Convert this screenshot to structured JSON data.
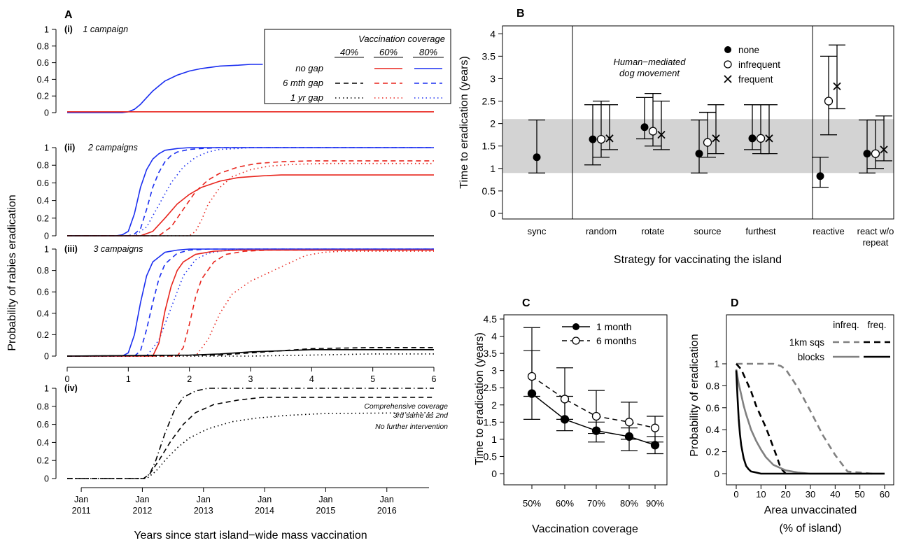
{
  "colors": {
    "black": "#000000",
    "red": "#e8241c",
    "blue": "#1a2ef0",
    "gray": "#808080",
    "band": "#d3d3d3"
  },
  "chart_data": [
    {
      "panel": "A",
      "type": "line",
      "ylabel": "Probability of rabies eradication",
      "xlabel_numeric": [
        "0",
        "1",
        "2",
        "3",
        "4",
        "5",
        "6"
      ],
      "ylim": [
        0,
        1
      ],
      "yticks": [
        "0",
        "0.2",
        "0.4",
        "0.6",
        "0.8",
        "1"
      ],
      "legend": {
        "title": "Vaccination coverage",
        "coverages": [
          "40%",
          "60%",
          "80%"
        ],
        "rows": [
          "no gap",
          "6 mth gap",
          "1 yr gap"
        ]
      },
      "subpanels": [
        {
          "label": "(i)",
          "title": "1 campaign",
          "series": [
            {
              "name": "80% no gap",
              "x": [
                0,
                0.9,
                1.0,
                1.1,
                1.2,
                1.3,
                1.4,
                1.5,
                1.6,
                1.8,
                2.0,
                2.2,
                2.5,
                2.8,
                3.0,
                3.2
              ],
              "y": [
                0,
                0,
                0.01,
                0.04,
                0.1,
                0.18,
                0.26,
                0.32,
                0.38,
                0.45,
                0.5,
                0.53,
                0.56,
                0.57,
                0.58,
                0.58
              ]
            },
            {
              "name": "60% no gap",
              "x": [
                0,
                6
              ],
              "y": [
                0.01,
                0.01
              ]
            }
          ]
        },
        {
          "label": "(ii)",
          "title": "2 campaigns",
          "series": [
            {
              "name": "80% no gap",
              "x": [
                0,
                0.8,
                0.9,
                1.0,
                1.1,
                1.2,
                1.3,
                1.4,
                1.5,
                1.6,
                1.8,
                2.0,
                2.5,
                6
              ],
              "y": [
                0,
                0,
                0.01,
                0.05,
                0.25,
                0.55,
                0.75,
                0.87,
                0.93,
                0.97,
                0.99,
                1,
                1,
                1
              ]
            },
            {
              "name": "80% 6 mth gap",
              "x": [
                0,
                1.0,
                1.1,
                1.2,
                1.3,
                1.4,
                1.5,
                1.6,
                1.7,
                1.8,
                2.0,
                2.2,
                2.5,
                6
              ],
              "y": [
                0,
                0,
                0.02,
                0.08,
                0.3,
                0.55,
                0.72,
                0.84,
                0.91,
                0.95,
                0.98,
                0.99,
                1,
                1
              ]
            },
            {
              "name": "80% 1 yr gap",
              "x": [
                0,
                1.1,
                1.3,
                1.5,
                1.7,
                1.9,
                2.1,
                2.3,
                2.5,
                2.8,
                3.0,
                6
              ],
              "y": [
                0,
                0,
                0.1,
                0.35,
                0.6,
                0.78,
                0.89,
                0.95,
                0.98,
                0.99,
                1,
                1
              ]
            },
            {
              "name": "60% no gap",
              "x": [
                0,
                1.2,
                1.4,
                1.6,
                1.8,
                2.0,
                2.2,
                2.5,
                2.8,
                3.2,
                3.5,
                6
              ],
              "y": [
                0,
                0,
                0.05,
                0.2,
                0.36,
                0.47,
                0.55,
                0.62,
                0.66,
                0.68,
                0.69,
                0.69
              ]
            },
            {
              "name": "60% 6 mth gap",
              "x": [
                0,
                1.5,
                1.7,
                1.9,
                2.1,
                2.3,
                2.5,
                2.8,
                3.1,
                3.5,
                4.0,
                6
              ],
              "y": [
                0,
                0,
                0.1,
                0.3,
                0.5,
                0.63,
                0.71,
                0.78,
                0.82,
                0.84,
                0.85,
                0.85
              ]
            },
            {
              "name": "60% 1 yr gap",
              "x": [
                0,
                2.0,
                2.1,
                2.2,
                2.3,
                2.5,
                2.7,
                3.0,
                3.3,
                3.7,
                4.2,
                6
              ],
              "y": [
                0,
                0,
                0.05,
                0.18,
                0.35,
                0.55,
                0.67,
                0.75,
                0.79,
                0.81,
                0.82,
                0.82
              ]
            },
            {
              "name": "40%",
              "x": [
                0,
                6
              ],
              "y": [
                0,
                0
              ]
            }
          ]
        },
        {
          "label": "(iii)",
          "title": "3 campaigns",
          "series": [
            {
              "name": "80% no gap",
              "x": [
                0,
                0.9,
                1.0,
                1.1,
                1.2,
                1.3,
                1.4,
                1.6,
                1.8,
                2.0,
                6
              ],
              "y": [
                0,
                0,
                0.03,
                0.2,
                0.5,
                0.75,
                0.88,
                0.97,
                0.99,
                1,
                1
              ]
            },
            {
              "name": "80% 6 mth gap",
              "x": [
                0,
                1.1,
                1.2,
                1.3,
                1.4,
                1.5,
                1.6,
                1.8,
                2.0,
                2.3,
                6
              ],
              "y": [
                0,
                0,
                0.05,
                0.25,
                0.5,
                0.72,
                0.86,
                0.96,
                0.99,
                1,
                1
              ]
            },
            {
              "name": "80% 1 yr gap",
              "x": [
                0,
                1.3,
                1.5,
                1.7,
                1.9,
                2.1,
                2.3,
                2.6,
                3.0,
                6
              ],
              "y": [
                0,
                0,
                0.15,
                0.45,
                0.75,
                0.9,
                0.96,
                0.99,
                1,
                1
              ]
            },
            {
              "name": "60% no gap",
              "x": [
                0,
                1.4,
                1.5,
                1.6,
                1.7,
                1.8,
                1.9,
                2.1,
                2.4,
                2.8,
                6
              ],
              "y": [
                0,
                0,
                0.12,
                0.42,
                0.65,
                0.8,
                0.88,
                0.95,
                0.98,
                0.99,
                0.99
              ]
            },
            {
              "name": "60% 6 mth gap",
              "x": [
                0,
                1.8,
                1.9,
                2.0,
                2.1,
                2.2,
                2.4,
                2.6,
                2.9,
                3.3,
                6
              ],
              "y": [
                0,
                0,
                0.08,
                0.3,
                0.55,
                0.72,
                0.88,
                0.95,
                0.98,
                0.99,
                0.99
              ]
            },
            {
              "name": "60% 1 yr gap",
              "x": [
                0,
                2.1,
                2.3,
                2.5,
                2.7,
                3.0,
                3.3,
                3.6,
                3.9,
                4.2,
                4.5,
                6
              ],
              "y": [
                0,
                0,
                0.15,
                0.4,
                0.58,
                0.7,
                0.78,
                0.86,
                0.94,
                0.97,
                0.98,
                0.98
              ]
            },
            {
              "name": "40% no gap",
              "x": [
                0,
                2.0,
                2.5,
                3.0,
                3.5,
                4.0,
                5.0,
                6
              ],
              "y": [
                0,
                0.01,
                0.02,
                0.04,
                0.05,
                0.06,
                0.06,
                0.06
              ]
            },
            {
              "name": "40% 6 mth gap",
              "x": [
                0,
                2.5,
                3.0,
                3.5,
                4.0,
                5.0,
                6
              ],
              "y": [
                0,
                0.01,
                0.03,
                0.05,
                0.07,
                0.08,
                0.08
              ]
            },
            {
              "name": "40% 1 yr gap",
              "x": [
                0,
                3.0,
                4.0,
                5.0,
                6
              ],
              "y": [
                0,
                0,
                0.01,
                0.02,
                0.02
              ]
            }
          ]
        },
        {
          "label": "(iv)",
          "series": [
            {
              "name": "Comprehensive coverage",
              "x": [
                0,
                1.25,
                1.35,
                1.45,
                1.6,
                1.75,
                1.9,
                2.1,
                2.3,
                6
              ],
              "y": [
                0,
                0,
                0.05,
                0.2,
                0.5,
                0.75,
                0.9,
                0.97,
                1,
                1
              ]
            },
            {
              "name": "3rd same as 2nd",
              "x": [
                0,
                1.25,
                1.35,
                1.5,
                1.7,
                1.9,
                2.1,
                2.4,
                2.8,
                3.2,
                6
              ],
              "y": [
                0,
                0,
                0.05,
                0.2,
                0.42,
                0.6,
                0.73,
                0.82,
                0.87,
                0.9,
                0.9
              ]
            },
            {
              "name": "No further intervention",
              "x": [
                0,
                1.3,
                1.45,
                1.6,
                1.8,
                2.0,
                2.3,
                2.7,
                3.1,
                3.6,
                4.2,
                6
              ],
              "y": [
                0,
                0,
                0.08,
                0.2,
                0.34,
                0.45,
                0.55,
                0.63,
                0.67,
                0.7,
                0.72,
                0.73
              ]
            }
          ],
          "xticks_date": [
            "Jan\n2011",
            "Jan\n2012",
            "Jan\n2013",
            "Jan\n2014",
            "Jan\n2015",
            "Jan\n2016"
          ],
          "xlabel": "Years since start island−wide mass vaccination"
        }
      ]
    },
    {
      "panel": "B",
      "type": "errorbar",
      "ylabel": "Time to eradication (years)",
      "xlabel": "Strategy for vaccinating the island",
      "ylim": [
        0,
        4
      ],
      "yticks": [
        "0",
        "0.5",
        "1",
        "1.5",
        "2",
        "2.5",
        "3",
        "3.5",
        "4"
      ],
      "shaded_band": [
        0.9,
        2.1
      ],
      "legend_title": "Human−mediated dog movement",
      "legend": [
        "none",
        "infrequent",
        "frequent"
      ],
      "categories": [
        "sync",
        "random",
        "rotate",
        "source",
        "furthest",
        "reactive",
        "react w/o repeat"
      ],
      "series": [
        {
          "name": "none",
          "values": [
            1.25,
            1.65,
            1.92,
            1.33,
            1.67,
            0.83,
            1.33
          ],
          "lower": [
            0.9,
            1.08,
            1.66,
            0.9,
            1.42,
            0.58,
            0.9
          ],
          "upper": [
            2.08,
            2.42,
            2.58,
            2.08,
            2.42,
            1.25,
            2.08
          ]
        },
        {
          "name": "infrequent",
          "values": [
            null,
            1.65,
            1.83,
            1.58,
            1.67,
            2.5,
            1.33
          ],
          "lower": [
            null,
            1.25,
            1.5,
            1.25,
            1.33,
            1.75,
            1.0
          ],
          "upper": [
            null,
            2.5,
            2.67,
            2.25,
            2.42,
            3.5,
            2.08
          ]
        },
        {
          "name": "frequent",
          "values": [
            null,
            1.67,
            1.75,
            1.67,
            1.67,
            2.83,
            1.42
          ],
          "lower": [
            null,
            1.42,
            1.42,
            1.33,
            1.33,
            2.33,
            1.17
          ],
          "upper": [
            null,
            2.42,
            2.5,
            2.42,
            2.42,
            3.75,
            2.17
          ]
        }
      ]
    },
    {
      "panel": "C",
      "type": "line",
      "ylabel": "Time to eradication (years)",
      "xlabel": "Vaccination coverage",
      "categories": [
        "50%",
        "60%",
        "70%",
        "80%",
        "90%"
      ],
      "ylim": [
        0,
        4.5
      ],
      "yticks": [
        "0",
        "0.5",
        "1",
        "1.5",
        "2",
        "2.5",
        "3",
        "3.5",
        "4",
        "4.5"
      ],
      "series": [
        {
          "name": "1 month",
          "values": [
            2.33,
            1.58,
            1.25,
            1.08,
            0.83
          ],
          "lower": [
            1.58,
            1.25,
            0.92,
            0.67,
            0.58
          ],
          "upper": [
            3.58,
            2.25,
            1.5,
            1.33,
            1.08
          ]
        },
        {
          "name": "6 months",
          "values": [
            2.83,
            2.17,
            1.67,
            1.5,
            1.33
          ],
          "lower": [
            2.25,
            1.58,
            1.17,
            1.0,
            0.92
          ],
          "upper": [
            4.25,
            3.08,
            2.42,
            2.08,
            1.67
          ]
        }
      ]
    },
    {
      "panel": "D",
      "type": "line",
      "ylabel": "Probability of eradication",
      "xlabel": [
        "Area unvaccinated",
        "(% of island)"
      ],
      "xticks": [
        "0",
        "10",
        "20",
        "30",
        "40",
        "50",
        "60"
      ],
      "yticks": [
        "0",
        "0.2",
        "0.4",
        "0.6",
        "0.8",
        "1"
      ],
      "xlim": [
        0,
        60
      ],
      "ylim": [
        0,
        1
      ],
      "legend_cols": [
        "infreq.",
        "freq."
      ],
      "legend_rows": [
        "1km sqs",
        "blocks"
      ],
      "series": [
        {
          "name": "1km sqs infreq.",
          "x": [
            0,
            5,
            10,
            15,
            18,
            20,
            25,
            30,
            35,
            40,
            45,
            50,
            55
          ],
          "y": [
            1,
            1,
            1,
            1,
            0.98,
            0.95,
            0.78,
            0.57,
            0.35,
            0.17,
            0.02,
            0.01,
            0
          ]
        },
        {
          "name": "1km sqs freq.",
          "x": [
            0,
            2,
            4,
            6,
            8,
            10,
            12,
            14,
            16,
            18,
            20
          ],
          "y": [
            1,
            0.95,
            0.85,
            0.75,
            0.62,
            0.52,
            0.42,
            0.3,
            0.18,
            0.05,
            0
          ]
        },
        {
          "name": "blocks infreq.",
          "x": [
            0,
            1,
            2,
            3,
            4,
            5,
            6,
            8,
            10,
            12,
            15,
            20,
            25,
            30,
            40,
            60
          ],
          "y": [
            0.95,
            0.82,
            0.72,
            0.62,
            0.54,
            0.47,
            0.4,
            0.3,
            0.22,
            0.15,
            0.08,
            0.03,
            0.01,
            0,
            0,
            0
          ]
        },
        {
          "name": "blocks freq.",
          "x": [
            0,
            0.5,
            1,
            1.5,
            2,
            3,
            4,
            5,
            6,
            8,
            10,
            15,
            60
          ],
          "y": [
            0.94,
            0.7,
            0.5,
            0.36,
            0.26,
            0.14,
            0.07,
            0.04,
            0.02,
            0.01,
            0,
            0,
            0
          ]
        }
      ]
    }
  ]
}
